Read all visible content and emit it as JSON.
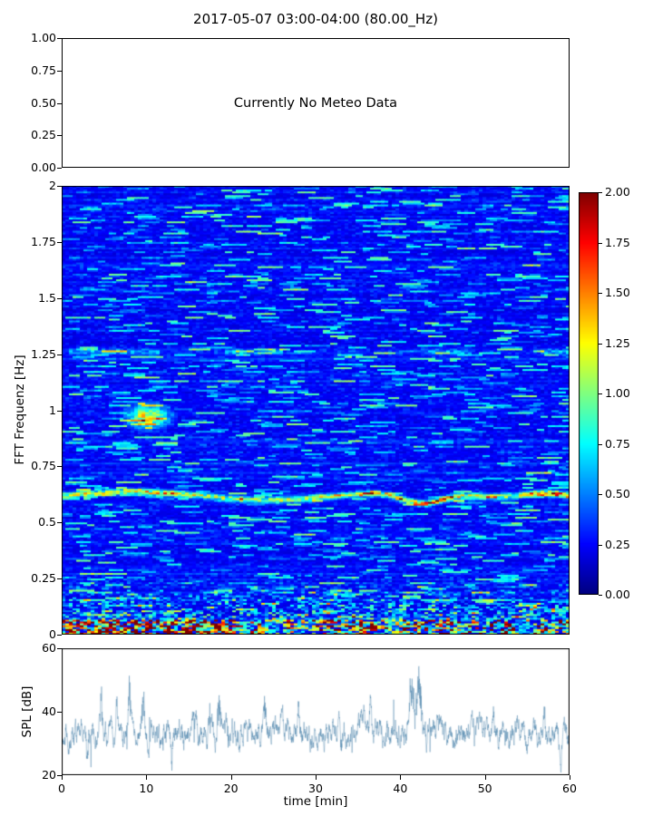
{
  "title": "2017-05-07 03:00-04:00 (80.00_Hz)",
  "figure": {
    "background": "#ffffff",
    "text_color": "#000000"
  },
  "chart_data": [
    {
      "type": "empty",
      "annotation": "Currently No Meteo Data",
      "ylim": [
        0,
        1
      ],
      "yticks": [
        "1.00",
        "0.75",
        "0.50",
        "0.25",
        "0.00"
      ],
      "grid": false
    },
    {
      "type": "heatmap",
      "ylabel": "FFT Frequenz [Hz]",
      "ylim": [
        0,
        2
      ],
      "xlim": [
        0,
        60
      ],
      "yticks": [
        "2",
        "1.75",
        "1.5",
        "1.25",
        "1",
        "0.75",
        "0.5",
        "0.25",
        "0"
      ],
      "colormap": "jet",
      "vmin": 0,
      "vmax": 2,
      "colorbar_ticks": [
        "2.00",
        "1.75",
        "1.50",
        "1.25",
        "1.00",
        "0.75",
        "0.50",
        "0.25",
        "0.00"
      ],
      "seed": 20170507,
      "grid_cells": {
        "nt": 140,
        "nf": 240
      },
      "noise": {
        "base_min": 0.17,
        "base_rand": 0.1,
        "cell_rand": 0.22,
        "streak_prob": 0.05,
        "streak_amp": 0.55
      },
      "features": [
        {
          "kind": "band",
          "f0": 0.618,
          "wobble_amp": 0.018,
          "wobble_period": 5.2,
          "dip_t": 42.5,
          "dip_amp": 0.05,
          "dip_w": 3.5,
          "rise_t": 57,
          "rise_amp": 0.03,
          "rise_w": 4,
          "width": 0.013,
          "amp_min": 0.45,
          "amp_rand": 0.75,
          "bright": [
            {
              "t": 44,
              "w": 3,
              "gain": 0.5
            },
            {
              "t": 58,
              "w": 2.5,
              "gain": 0.5
            },
            {
              "t": 12,
              "w": 3,
              "gain": 0.3
            }
          ]
        },
        {
          "kind": "blob",
          "t0": 10.2,
          "tw": 2.2,
          "f0": 0.97,
          "fw": 0.045,
          "amp_min": 0.7,
          "amp_rand": 0.7
        },
        {
          "kind": "band2",
          "f0": 1.26,
          "width": 0.012,
          "amp_min": 0.15,
          "amp_rand": 0.45
        },
        {
          "kind": "lowfreq",
          "fmax": 0.3,
          "prob_base": 0.18,
          "prob_gain": 0.4,
          "amp_min": 0.3,
          "amp_rand": 1.3
        },
        {
          "kind": "bottom",
          "fmax": 0.07,
          "amp_min": 0.8,
          "amp_rand": 1.2
        }
      ]
    },
    {
      "type": "line",
      "ylabel": "SPL [dB]",
      "xlabel": "time [min]",
      "xlim": [
        0,
        60
      ],
      "ylim": [
        20,
        60
      ],
      "yticks": [
        "60",
        "40",
        "20"
      ],
      "xticks": [
        "0",
        "10",
        "20",
        "30",
        "40",
        "50",
        "60"
      ],
      "color": "#4a82ab",
      "baseline": 33.5,
      "noise_amp": 2.2,
      "persistence": 0.88,
      "seed": 424242,
      "n_samples": 2600,
      "spikes": [
        {
          "t": 4.6,
          "amp": 14,
          "w": 0.18
        },
        {
          "t": 6.5,
          "amp": 10,
          "w": 0.15
        },
        {
          "t": 8.0,
          "amp": 17,
          "w": 0.15
        },
        {
          "t": 9.6,
          "amp": 12,
          "w": 0.2
        },
        {
          "t": 18.6,
          "amp": 12,
          "w": 0.25
        },
        {
          "t": 24.0,
          "amp": 8,
          "w": 0.15
        },
        {
          "t": 28.0,
          "amp": 9,
          "w": 0.15
        },
        {
          "t": 36.5,
          "amp": 8,
          "w": 0.12
        },
        {
          "t": 41.3,
          "amp": 12,
          "w": 0.5
        },
        {
          "t": 42.3,
          "amp": 13,
          "w": 0.4
        },
        {
          "t": 51.0,
          "amp": 8,
          "w": 0.12
        },
        {
          "t": 57.0,
          "amp": 11,
          "w": 0.15
        },
        {
          "t": 3.0,
          "amp": -9,
          "w": 0.12
        },
        {
          "t": 13.0,
          "amp": -8,
          "w": 0.1
        },
        {
          "t": 33.0,
          "amp": -8,
          "w": 0.1
        },
        {
          "t": 59.0,
          "amp": -9,
          "w": 0.1
        }
      ]
    }
  ]
}
